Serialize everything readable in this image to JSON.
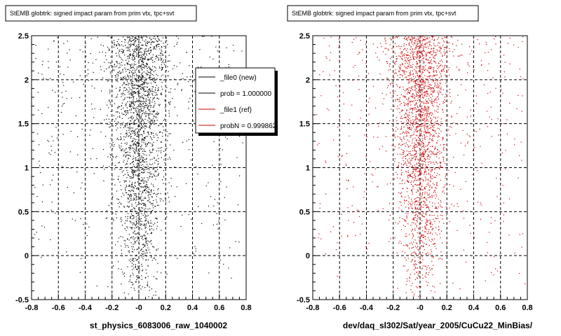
{
  "chart_data": [
    {
      "type": "scatter",
      "title": "StEMB globtrk: signed impact param from prim vtx, tpc+svt",
      "xlabel": "st_physics_6083006_raw_1040002",
      "ylabel": "",
      "xlim": [
        -0.8,
        0.8
      ],
      "ylim": [
        -0.5,
        2.5
      ],
      "xticks": [
        -0.8,
        -0.6,
        -0.4,
        -0.2,
        0,
        0.2,
        0.4,
        0.6,
        0.8
      ],
      "yticks": [
        -0.5,
        0,
        0.5,
        1,
        1.5,
        2,
        2.5
      ],
      "xtick_labels": [
        "-0.8",
        "-0.6",
        "-0.4",
        "-0.2",
        "-0",
        "0.2",
        "0.4",
        "0.6",
        "0.8"
      ],
      "ytick_labels": [
        "-0.5",
        "0",
        "0.5",
        "1",
        "1.5",
        "2",
        "2.5"
      ],
      "grid": true,
      "marker_color": "#000000",
      "legend": {
        "placement": "top-right",
        "entries": [
          {
            "label": "_file0 (new)",
            "color": "#000000"
          },
          {
            "label": "prob = 1.000000",
            "color": "#000000"
          },
          {
            "label": "_file1 (ref)",
            "color": "#cc0000"
          },
          {
            "label": "probN = 0.999862",
            "color": "#cc0000"
          }
        ]
      }
    },
    {
      "type": "scatter",
      "title": "StEMB globtrk: signed impact param from prim vtx, tpc+svt",
      "xlabel": "dev/daq_sl302/Sat/year_2005/CuCu22_MinBias/",
      "ylabel": "",
      "xlim": [
        -0.8,
        0.8
      ],
      "ylim": [
        -0.5,
        2.5
      ],
      "xticks": [
        -0.8,
        -0.6,
        -0.4,
        -0.2,
        0,
        0.2,
        0.4,
        0.6,
        0.8
      ],
      "yticks": [
        -0.5,
        0,
        0.5,
        1,
        1.5,
        2,
        2.5
      ],
      "xtick_labels": [
        "-0.8",
        "-0.6",
        "-0.4",
        "-0.2",
        "-0",
        "0.2",
        "0.4",
        "0.6",
        "0.8"
      ],
      "ytick_labels": [
        "-0.5",
        "0",
        "0.5",
        "1",
        "1.5",
        "2",
        "2.5"
      ],
      "grid": true,
      "marker_color": "#cc0000"
    }
  ]
}
